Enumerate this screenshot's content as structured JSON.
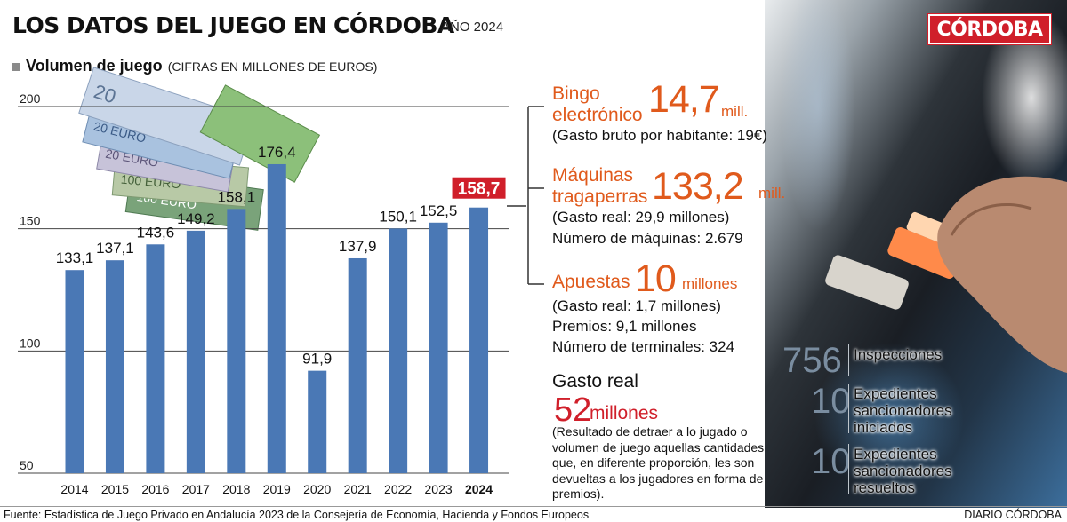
{
  "header": {
    "title": "LOS DATOS DEL JUEGO EN CÓRDOBA",
    "year_label": "AÑO 2024",
    "subtitle": "Volumen de juego",
    "subtitle_note": "(CIFRAS EN MILLONES DE EUROS)"
  },
  "logo": {
    "text": "CÓRDOBA",
    "color": "#d01f2a"
  },
  "chart_data": {
    "type": "bar",
    "categories": [
      "2014",
      "2015",
      "2016",
      "2017",
      "2018",
      "2019",
      "2020",
      "2021",
      "2022",
      "2023",
      "2024"
    ],
    "values": [
      133.1,
      137.1,
      143.6,
      149.2,
      158.1,
      176.4,
      91.9,
      137.9,
      150.1,
      152.5,
      158.7
    ],
    "value_labels": [
      "133,1",
      "137,1",
      "143,6",
      "149,2",
      "158,1",
      "176,4",
      "91,9",
      "137,9",
      "150,1",
      "152,5",
      "158,7"
    ],
    "highlight_index": 10,
    "yticks": [
      200,
      150,
      100,
      50
    ],
    "ylim": [
      50,
      200
    ],
    "grid": true,
    "bar_color": "#4a78b5",
    "highlight_color": "#d01f2a"
  },
  "bingo": {
    "label_line1": "Bingo",
    "label_line2": "electrónico",
    "value": "14,7",
    "unit": "mill.",
    "note": "(Gasto bruto por habitante: 19€)"
  },
  "maquinas": {
    "label_line1": "Máquinas",
    "label_line2": "tragaperras",
    "value": "133,2",
    "unit": "mill.",
    "note1": "(Gasto real: 29,9 millones)",
    "note2": "Número de máquinas: 2.679"
  },
  "apuestas": {
    "label": "Apuestas",
    "value": "10",
    "unit": "millones",
    "note1": "(Gasto real: 1,7 millones)",
    "note2": "Premios: 9,1 millones",
    "note3": "Número de terminales: 324"
  },
  "gasto": {
    "title": "Gasto real",
    "value": "52",
    "unit": "millones",
    "note": "(Resultado de detraer a lo jugado o volumen de juego aquellas cantidades que, en diferente proporción, les son devueltas a los jugadores en forma de premios)."
  },
  "stats": [
    {
      "number": "756",
      "label": "Inspecciones"
    },
    {
      "number": "10",
      "label": "Expedientes sancionadores iniciados"
    },
    {
      "number": "10",
      "label": "Expedientes sancionadores resueltos"
    }
  ],
  "footer": {
    "source": "Fuente: Estadística de Juego Privado en Andalucía 2023 de la Consejería de Economía, Hacienda y Fondos Europeos",
    "brand": "DIARIO CÓRDOBA"
  },
  "colors": {
    "accent_orange": "#e05a1c",
    "accent_red": "#d01f2a",
    "stat_gray": "#7a8da0"
  }
}
